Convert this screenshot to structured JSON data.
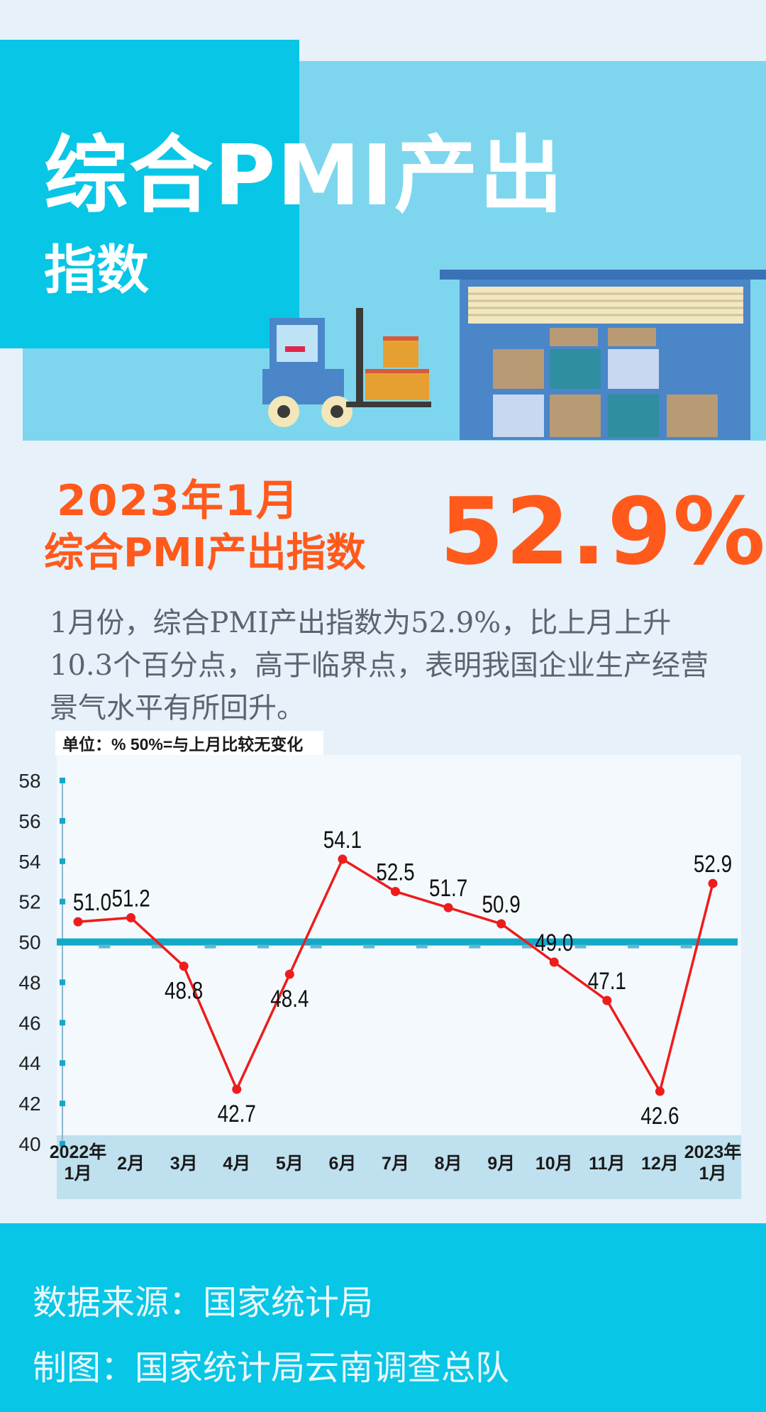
{
  "header": {
    "title_line1": "综合PMI产出",
    "title_line2": "指数"
  },
  "headline": {
    "line1": "2023年1月",
    "line2": "综合PMI产出指数",
    "value": "52.9%"
  },
  "description": "1月份，综合PMI产出指数为52.9%，比上月上升10.3个百分点，高于临界点，表明我国企业生产经营景气水平有所回升。",
  "footer": {
    "source": "数据来源：国家统计局",
    "credit": "制图：国家统计局云南调查总队"
  },
  "colors": {
    "accent_orange": "#ff5a1b",
    "line_red": "#ee1c1c",
    "baseline_teal": "#12a9c9",
    "header_cyan": "#08c6e6",
    "header_light": "#7dd6ee"
  },
  "chart_data": {
    "type": "line",
    "unit_note": "单位：%  50%=与上月比较无变化",
    "categories": [
      [
        "2022年",
        "1月"
      ],
      [
        "2月"
      ],
      [
        "3月"
      ],
      [
        "4月"
      ],
      [
        "5月"
      ],
      [
        "6月"
      ],
      [
        "7月"
      ],
      [
        "8月"
      ],
      [
        "9月"
      ],
      [
        "10月"
      ],
      [
        "11月"
      ],
      [
        "12月"
      ],
      [
        "2023年",
        "1月"
      ]
    ],
    "values": [
      51.0,
      51.2,
      48.8,
      42.7,
      48.4,
      54.1,
      52.5,
      51.7,
      50.9,
      49.0,
      47.1,
      42.6,
      52.9
    ],
    "value_labels": [
      "51.0",
      "51.2",
      "48.8",
      "42.7",
      "48.4",
      "54.1",
      "52.5",
      "51.7",
      "50.9",
      "49.0",
      "47.1",
      "42.6",
      "52.9"
    ],
    "label_positions": [
      "above",
      "above",
      "below",
      "below",
      "below",
      "above",
      "above",
      "above",
      "above",
      "above",
      "above",
      "below",
      "above"
    ],
    "ylim": [
      40,
      58
    ],
    "yticks": [
      40,
      42,
      44,
      46,
      48,
      50,
      52,
      54,
      56,
      58
    ],
    "reference_line": 50,
    "grid": false,
    "legend": "none"
  }
}
